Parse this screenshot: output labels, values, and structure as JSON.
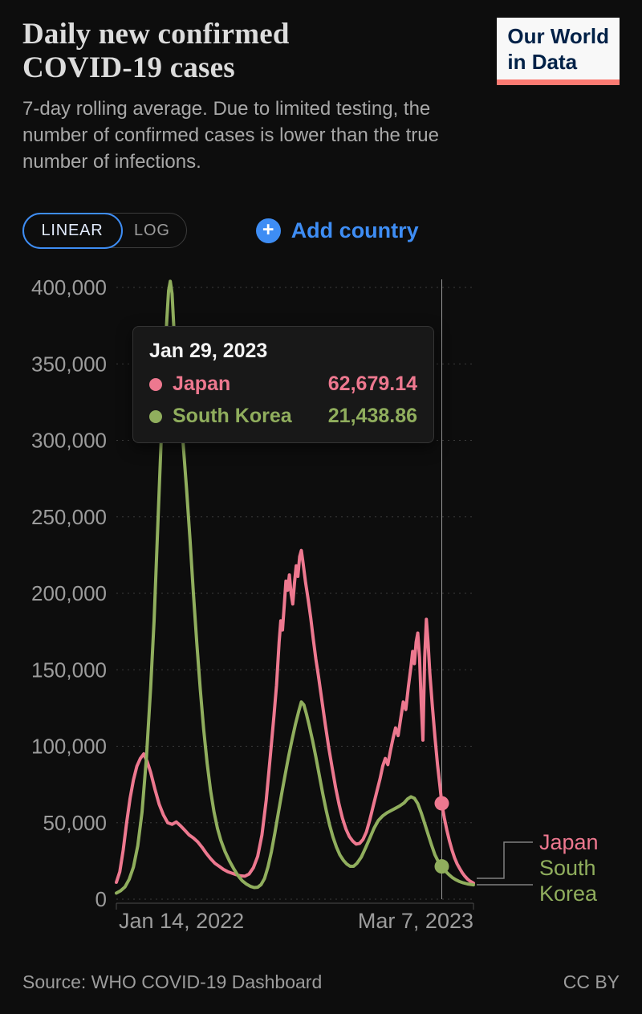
{
  "page": {
    "background": "#0d0d0d"
  },
  "header": {
    "title_line1": "Daily new confirmed",
    "title_line2": "COVID-19 cases",
    "subtitle": "7-day rolling average. Due to limited testing, the number of confirmed cases is lower than the true number of infections.",
    "logo": {
      "line1": "Our World",
      "line2": "in Data",
      "text_color": "#002147",
      "bg": "#f8f8f8",
      "accent": "#fb7a72"
    }
  },
  "controls": {
    "linear_label": "LINEAR",
    "log_label": "LOG",
    "add_country_label": "Add country",
    "accent_blue": "#3e8df4"
  },
  "tooltip": {
    "date": "Jan 29, 2023",
    "rows": [
      {
        "label": "Japan",
        "value": "62,679.14",
        "color": "#ed788f"
      },
      {
        "label": "South Korea",
        "value": "21,438.86",
        "color": "#90ae5d"
      }
    ]
  },
  "chart_data": {
    "type": "line",
    "title": "Daily new confirmed COVID-19 cases",
    "xlabel": "",
    "ylabel": "",
    "x_start_label": "Jan 14, 2022",
    "x_end_label": "Mar 7, 2023",
    "x_total_days": 417,
    "ylim": [
      0,
      400000
    ],
    "grid": true,
    "legend_position": "right-end-labels",
    "yticks": [
      0,
      50000,
      100000,
      150000,
      200000,
      250000,
      300000,
      350000,
      400000
    ],
    "ytick_labels": [
      "0",
      "50,000",
      "100,000",
      "150,000",
      "200,000",
      "250,000",
      "300,000",
      "350,000",
      "400,000"
    ],
    "hover": {
      "date": "Jan 29, 2023",
      "day_index": 380
    },
    "series": [
      {
        "name": "Japan",
        "color": "#ed788f",
        "hover_value": 62679.14,
        "points": [
          [
            0,
            11000
          ],
          [
            4,
            18000
          ],
          [
            8,
            32000
          ],
          [
            12,
            50000
          ],
          [
            16,
            66000
          ],
          [
            20,
            78000
          ],
          [
            24,
            87000
          ],
          [
            28,
            92000
          ],
          [
            32,
            95000
          ],
          [
            36,
            90000
          ],
          [
            40,
            83000
          ],
          [
            45,
            72000
          ],
          [
            50,
            62000
          ],
          [
            55,
            55000
          ],
          [
            60,
            50000
          ],
          [
            65,
            49000
          ],
          [
            70,
            50500
          ],
          [
            75,
            48000
          ],
          [
            80,
            45000
          ],
          [
            85,
            42000
          ],
          [
            90,
            40000
          ],
          [
            95,
            37500
          ],
          [
            100,
            34000
          ],
          [
            105,
            30000
          ],
          [
            110,
            26500
          ],
          [
            115,
            23500
          ],
          [
            120,
            21500
          ],
          [
            125,
            19500
          ],
          [
            130,
            18000
          ],
          [
            135,
            17000
          ],
          [
            140,
            16000
          ],
          [
            145,
            15300
          ],
          [
            150,
            15000
          ],
          [
            155,
            16500
          ],
          [
            160,
            20500
          ],
          [
            165,
            28000
          ],
          [
            170,
            42000
          ],
          [
            175,
            65000
          ],
          [
            180,
            95000
          ],
          [
            184,
            120000
          ],
          [
            187,
            140000
          ],
          [
            190,
            168000
          ],
          [
            192,
            182000
          ],
          [
            194,
            176000
          ],
          [
            196,
            192000
          ],
          [
            198,
            208000
          ],
          [
            200,
            202000
          ],
          [
            202,
            212000
          ],
          [
            204,
            200000
          ],
          [
            206,
            193000
          ],
          [
            208,
            207000
          ],
          [
            210,
            218000
          ],
          [
            212,
            211000
          ],
          [
            214,
            224000
          ],
          [
            216,
            228000
          ],
          [
            218,
            220000
          ],
          [
            221,
            207000
          ],
          [
            224,
            196000
          ],
          [
            227,
            184000
          ],
          [
            230,
            170000
          ],
          [
            233,
            157000
          ],
          [
            236,
            146000
          ],
          [
            240,
            130000
          ],
          [
            244,
            114000
          ],
          [
            248,
            99000
          ],
          [
            252,
            86000
          ],
          [
            256,
            73000
          ],
          [
            260,
            62000
          ],
          [
            264,
            53000
          ],
          [
            268,
            46000
          ],
          [
            272,
            41000
          ],
          [
            276,
            38000
          ],
          [
            280,
            36000
          ],
          [
            284,
            36500
          ],
          [
            288,
            39000
          ],
          [
            292,
            44000
          ],
          [
            296,
            52000
          ],
          [
            300,
            61000
          ],
          [
            304,
            70000
          ],
          [
            308,
            79000
          ],
          [
            311,
            87000
          ],
          [
            314,
            92000
          ],
          [
            317,
            88000
          ],
          [
            320,
            97000
          ],
          [
            323,
            105000
          ],
          [
            326,
            112000
          ],
          [
            329,
            107000
          ],
          [
            332,
            118000
          ],
          [
            335,
            129000
          ],
          [
            338,
            124000
          ],
          [
            341,
            139000
          ],
          [
            344,
            152000
          ],
          [
            346,
            162000
          ],
          [
            348,
            154000
          ],
          [
            350,
            168000
          ],
          [
            352,
            174000
          ],
          [
            354,
            158000
          ],
          [
            356,
            128000
          ],
          [
            358,
            104000
          ],
          [
            360,
            158000
          ],
          [
            362,
            183000
          ],
          [
            364,
            168000
          ],
          [
            366,
            148000
          ],
          [
            369,
            126000
          ],
          [
            372,
            106000
          ],
          [
            375,
            88000
          ],
          [
            378,
            73000
          ],
          [
            380,
            62679
          ],
          [
            383,
            53000
          ],
          [
            386,
            45000
          ],
          [
            389,
            38000
          ],
          [
            392,
            32000
          ],
          [
            395,
            27000
          ],
          [
            398,
            23000
          ],
          [
            401,
            20000
          ],
          [
            404,
            17200
          ],
          [
            407,
            15000
          ],
          [
            410,
            13200
          ],
          [
            413,
            11800
          ],
          [
            417,
            10500
          ]
        ]
      },
      {
        "name": "South Korea",
        "color": "#90ae5d",
        "hover_value": 21438.86,
        "points": [
          [
            0,
            4000
          ],
          [
            5,
            5500
          ],
          [
            10,
            8000
          ],
          [
            15,
            13000
          ],
          [
            20,
            21000
          ],
          [
            25,
            35000
          ],
          [
            30,
            57000
          ],
          [
            35,
            92000
          ],
          [
            40,
            138000
          ],
          [
            44,
            182000
          ],
          [
            47,
            225000
          ],
          [
            50,
            268000
          ],
          [
            53,
            310000
          ],
          [
            56,
            348000
          ],
          [
            59,
            380000
          ],
          [
            61,
            398000
          ],
          [
            63,
            404000
          ],
          [
            65,
            396000
          ],
          [
            67,
            375000
          ],
          [
            69,
            352000
          ],
          [
            72,
            330000
          ],
          [
            75,
            315000
          ],
          [
            78,
            298000
          ],
          [
            82,
            268000
          ],
          [
            86,
            235000
          ],
          [
            90,
            200000
          ],
          [
            94,
            167000
          ],
          [
            98,
            137000
          ],
          [
            102,
            111000
          ],
          [
            106,
            89000
          ],
          [
            110,
            71000
          ],
          [
            114,
            57000
          ],
          [
            118,
            46500
          ],
          [
            122,
            38500
          ],
          [
            127,
            31000
          ],
          [
            132,
            25000
          ],
          [
            137,
            20000
          ],
          [
            142,
            15500
          ],
          [
            147,
            12000
          ],
          [
            152,
            9800
          ],
          [
            157,
            8300
          ],
          [
            161,
            7600
          ],
          [
            165,
            7800
          ],
          [
            169,
            9500
          ],
          [
            173,
            13500
          ],
          [
            177,
            21000
          ],
          [
            181,
            31000
          ],
          [
            185,
            43000
          ],
          [
            189,
            56000
          ],
          [
            193,
            69000
          ],
          [
            197,
            81000
          ],
          [
            201,
            93000
          ],
          [
            205,
            104000
          ],
          [
            209,
            114000
          ],
          [
            213,
            123000
          ],
          [
            216,
            129000
          ],
          [
            219,
            127000
          ],
          [
            222,
            121000
          ],
          [
            225,
            114000
          ],
          [
            229,
            104000
          ],
          [
            233,
            93000
          ],
          [
            237,
            81000
          ],
          [
            241,
            69000
          ],
          [
            245,
            58000
          ],
          [
            249,
            48500
          ],
          [
            253,
            40500
          ],
          [
            257,
            34000
          ],
          [
            261,
            29000
          ],
          [
            265,
            25500
          ],
          [
            269,
            23000
          ],
          [
            273,
            21500
          ],
          [
            277,
            21500
          ],
          [
            281,
            23500
          ],
          [
            286,
            27500
          ],
          [
            291,
            33500
          ],
          [
            296,
            40000
          ],
          [
            301,
            46500
          ],
          [
            306,
            51500
          ],
          [
            311,
            54500
          ],
          [
            316,
            56500
          ],
          [
            321,
            58000
          ],
          [
            326,
            59500
          ],
          [
            331,
            61000
          ],
          [
            336,
            63000
          ],
          [
            340,
            65500
          ],
          [
            344,
            67000
          ],
          [
            348,
            66000
          ],
          [
            352,
            62500
          ],
          [
            356,
            56500
          ],
          [
            360,
            49500
          ],
          [
            364,
            42500
          ],
          [
            368,
            35500
          ],
          [
            372,
            29000
          ],
          [
            376,
            24500
          ],
          [
            380,
            21439
          ],
          [
            384,
            18500
          ],
          [
            388,
            16200
          ],
          [
            392,
            14300
          ],
          [
            396,
            12800
          ],
          [
            400,
            11700
          ],
          [
            405,
            10700
          ],
          [
            410,
            10000
          ],
          [
            417,
            9400
          ]
        ]
      }
    ]
  },
  "footer": {
    "source": "Source: WHO COVID-19 Dashboard",
    "license": "CC BY"
  }
}
